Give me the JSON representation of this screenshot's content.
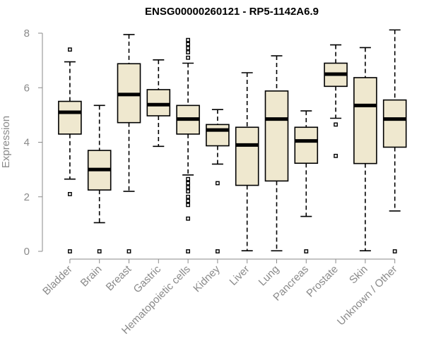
{
  "chart_data": {
    "type": "boxplot",
    "title": "ENSG00000260121 - RP5-1142A6.9",
    "xlabel": "",
    "ylabel": "Expression",
    "ylim": [
      0,
      8
    ],
    "yticks": [
      0,
      2,
      4,
      6,
      8
    ],
    "colors": {
      "box_fill": "#efe8cf",
      "stroke": "#000000",
      "axis": "#8a8a8a"
    },
    "categories": [
      "Bladder",
      "Brain",
      "Breast",
      "Gastric",
      "Hematopoietic cells",
      "Kidney",
      "Liver",
      "Lung",
      "Pancreas",
      "Prostate",
      "Skin",
      "Unknown / Other"
    ],
    "boxes": [
      {
        "category": "Bladder",
        "whisker_low": 2.65,
        "q1": 4.3,
        "median": 5.1,
        "q3": 5.5,
        "whisker_high": 6.95,
        "outliers": [
          7.4,
          2.1,
          0
        ]
      },
      {
        "category": "Brain",
        "whisker_low": 1.05,
        "q1": 2.25,
        "median": 3.0,
        "q3": 3.7,
        "whisker_high": 5.35,
        "outliers": [
          0
        ]
      },
      {
        "category": "Breast",
        "whisker_low": 2.2,
        "q1": 4.72,
        "median": 5.75,
        "q3": 6.88,
        "whisker_high": 7.95,
        "outliers": [
          0
        ]
      },
      {
        "category": "Gastric",
        "whisker_low": 3.85,
        "q1": 4.97,
        "median": 5.38,
        "q3": 5.93,
        "whisker_high": 7.02,
        "outliers": []
      },
      {
        "category": "Hematopoietic cells",
        "whisker_low": 2.8,
        "q1": 4.3,
        "median": 4.85,
        "q3": 5.35,
        "whisker_high": 6.9,
        "outliers": [
          7.75,
          7.6,
          7.45,
          7.3,
          7.1,
          2.65,
          2.5,
          2.35,
          2.2,
          2.0,
          1.85,
          1.7,
          1.2,
          0
        ]
      },
      {
        "category": "Kidney",
        "whisker_low": 3.2,
        "q1": 3.87,
        "median": 4.45,
        "q3": 4.65,
        "whisker_high": 5.2,
        "outliers": [
          2.5,
          0
        ]
      },
      {
        "category": "Liver",
        "whisker_low": 0.02,
        "q1": 2.42,
        "median": 3.9,
        "q3": 4.55,
        "whisker_high": 6.55,
        "outliers": []
      },
      {
        "category": "Lung",
        "whisker_low": 0.02,
        "q1": 2.58,
        "median": 4.85,
        "q3": 5.88,
        "whisker_high": 7.17,
        "outliers": []
      },
      {
        "category": "Pancreas",
        "whisker_low": 1.28,
        "q1": 3.23,
        "median": 4.05,
        "q3": 4.55,
        "whisker_high": 5.15,
        "outliers": [
          0
        ]
      },
      {
        "category": "Prostate",
        "whisker_low": 4.88,
        "q1": 6.05,
        "median": 6.5,
        "q3": 6.9,
        "whisker_high": 7.57,
        "outliers": [
          4.65,
          3.5
        ]
      },
      {
        "category": "Skin",
        "whisker_low": 0.02,
        "q1": 3.22,
        "median": 5.35,
        "q3": 6.37,
        "whisker_high": 7.47,
        "outliers": []
      },
      {
        "category": "Unknown / Other",
        "whisker_low": 1.48,
        "q1": 3.82,
        "median": 4.85,
        "q3": 5.55,
        "whisker_high": 8.12,
        "outliers": [
          0
        ]
      }
    ]
  }
}
